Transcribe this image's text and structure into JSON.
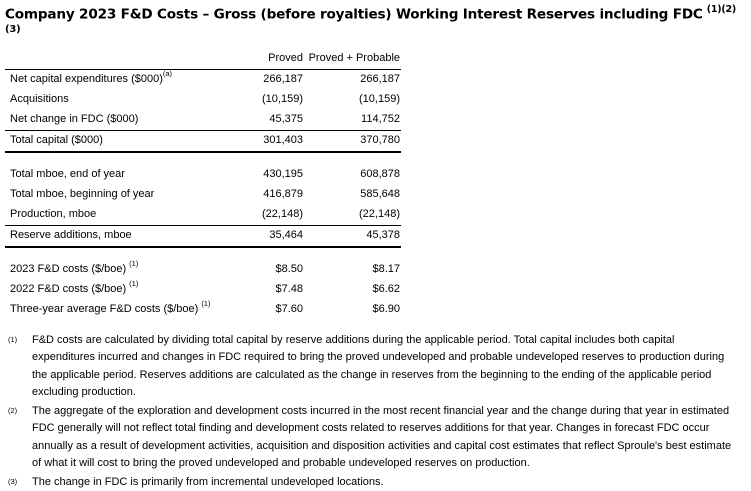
{
  "title": {
    "text": "Company 2023 F&D Costs – Gross (before royalties) Working Interest Reserves including FDC",
    "sup_line1": "(1)(2)",
    "sup_line2": "(3)"
  },
  "table": {
    "columns": [
      "Proved",
      "Proved + Probable"
    ],
    "rows": [
      {
        "label": "Net capital expenditures ($000)",
        "sup": "(a)",
        "proved": "266,187",
        "proved_probable": "266,187"
      },
      {
        "label": "Acquisitions",
        "sup": "",
        "proved": "(10,159)",
        "proved_probable": "(10,159)"
      },
      {
        "label": "Net change in FDC ($000)",
        "sup": "",
        "proved": "45,375",
        "proved_probable": "114,752"
      },
      {
        "label": "Total capital ($000)",
        "sup": "",
        "proved": "301,403",
        "proved_probable": "370,780"
      },
      {
        "label": "Total mboe, end of year",
        "sup": "",
        "proved": "430,195",
        "proved_probable": "608,878"
      },
      {
        "label": "Total mboe, beginning of year",
        "sup": "",
        "proved": "416,879",
        "proved_probable": "585,648"
      },
      {
        "label": "Production, mboe",
        "sup": "",
        "proved": "(22,148)",
        "proved_probable": "(22,148)"
      },
      {
        "label": "Reserve additions, mboe",
        "sup": "",
        "proved": "35,464",
        "proved_probable": "45,378"
      },
      {
        "label": "2023 F&D costs ($/boe)",
        "sup": "(1)",
        "proved": "$8.50",
        "proved_probable": "$8.17"
      },
      {
        "label": "2022 F&D costs ($/boe)",
        "sup": "(1)",
        "proved": "$7.48",
        "proved_probable": "$6.62"
      },
      {
        "label": "Three-year average F&D costs ($/boe)",
        "sup": "(1)",
        "proved": "$7.60",
        "proved_probable": "$6.90"
      }
    ]
  },
  "footnotes": [
    {
      "marker": "(1)",
      "text": "F&D costs are calculated by dividing total capital by reserve additions during the applicable period. Total capital includes both capital expenditures incurred and changes in FDC required to bring the proved undeveloped and probable undeveloped reserves to production during the applicable period. Reserves additions are calculated as the change in reserves from the beginning to the ending of the applicable period excluding production."
    },
    {
      "marker": "(2)",
      "text": "The aggregate of the exploration and development costs incurred in the most recent financial year and the change during that year in estimated FDC generally will not reflect total finding and development costs related to reserves additions for that year. Changes in forecast FDC occur annually as a result of development activities, acquisition and disposition activities and capital cost estimates that reflect Sproule's best estimate of what it will cost to bring the proved undeveloped and probable undeveloped reserves on production."
    },
    {
      "marker": "(3)",
      "text": "The change in FDC is primarily from incremental undeveloped locations."
    }
  ]
}
